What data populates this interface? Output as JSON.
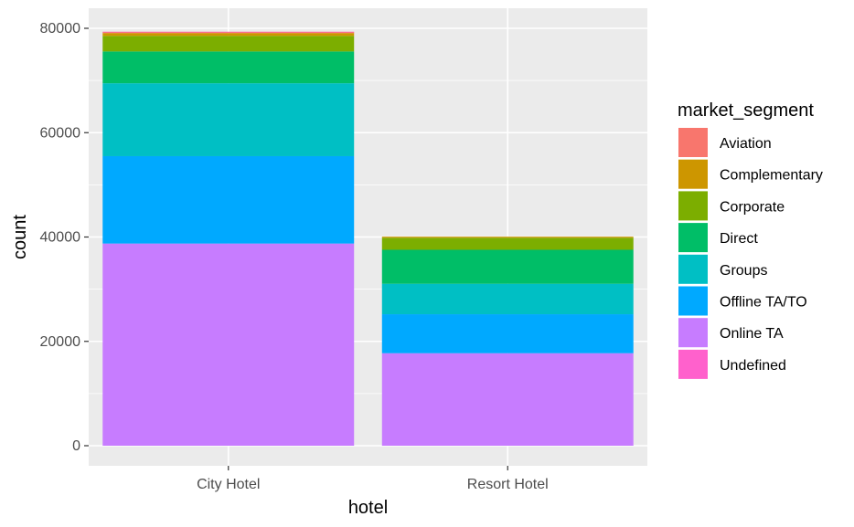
{
  "chart_data": {
    "type": "bar",
    "stacked": true,
    "xlabel": "hotel",
    "ylabel": "count",
    "ylim": [
      0,
      83000
    ],
    "yticks": [
      0,
      20000,
      40000,
      60000,
      80000
    ],
    "ytick_labels": [
      "0",
      "20000",
      "40000",
      "60000",
      "80000"
    ],
    "grid": true,
    "legend": {
      "title": "market_segment",
      "position": "right"
    },
    "categories": [
      "City Hotel",
      "Resort Hotel"
    ],
    "series": [
      {
        "name": "Online TA",
        "color": "#C77CFF",
        "values": [
          38748,
          17729
        ]
      },
      {
        "name": "Offline TA/TO",
        "color": "#00A9FF",
        "values": [
          16747,
          7472
        ]
      },
      {
        "name": "Groups",
        "color": "#00BFC4",
        "values": [
          13975,
          5836
        ]
      },
      {
        "name": "Direct",
        "color": "#00BE67",
        "values": [
          6093,
          6513
        ]
      },
      {
        "name": "Corporate",
        "color": "#7CAE00",
        "values": [
          2986,
          2309
        ]
      },
      {
        "name": "Complementary",
        "color": "#CD9600",
        "values": [
          542,
          201
        ]
      },
      {
        "name": "Aviation",
        "color": "#F8766D",
        "values": [
          237,
          0
        ]
      },
      {
        "name": "Undefined",
        "color": "#FF61CC",
        "values": [
          2,
          0
        ]
      }
    ],
    "legend_order": [
      "Aviation",
      "Complementary",
      "Corporate",
      "Direct",
      "Groups",
      "Offline TA/TO",
      "Online TA",
      "Undefined"
    ]
  }
}
